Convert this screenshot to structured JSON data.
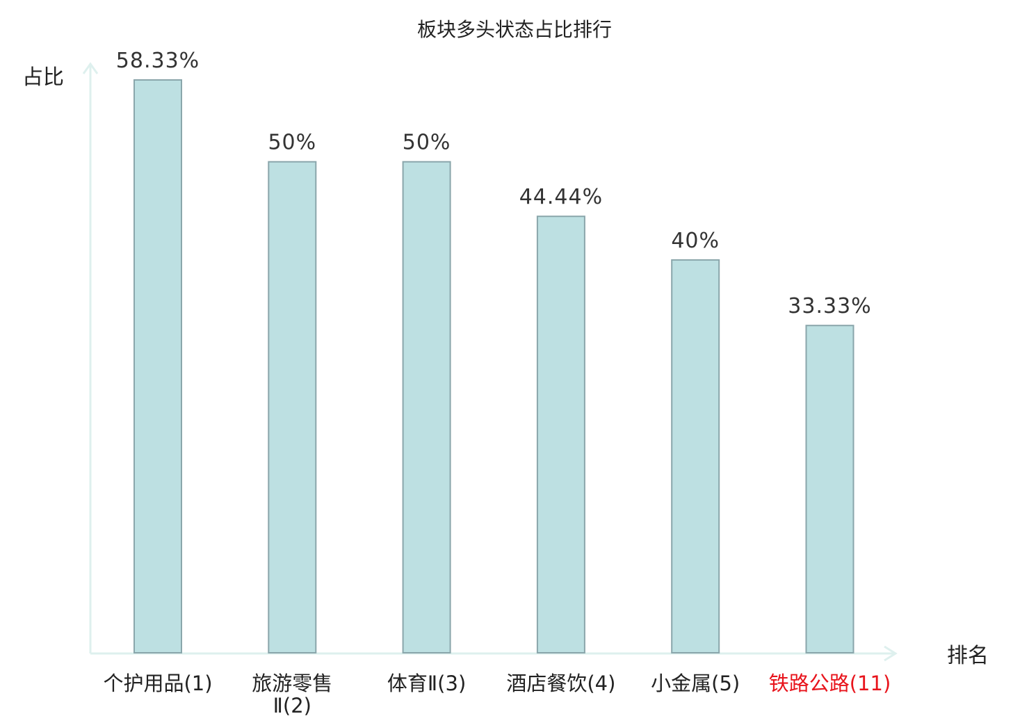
{
  "chart_data": {
    "type": "bar",
    "title": "板块多头状态占比排行",
    "xlabel": "排名",
    "ylabel": "占比",
    "categories": [
      "个护用品(1)",
      "旅游零售Ⅱ(2)",
      "体育Ⅱ(3)",
      "酒店餐饮(4)",
      "小金属(5)",
      "铁路公路(11)"
    ],
    "category_lines": [
      [
        "个护用品(1)"
      ],
      [
        "旅游零售",
        "Ⅱ(2)"
      ],
      [
        "体育Ⅱ(3)"
      ],
      [
        "酒店餐饮(4)"
      ],
      [
        "小金属(5)"
      ],
      [
        "铁路公路(11)"
      ]
    ],
    "values": [
      58.33,
      50,
      50,
      44.44,
      40,
      33.33
    ],
    "value_labels": [
      "58.33%",
      "50%",
      "50%",
      "44.44%",
      "40%",
      "33.33%"
    ],
    "highlight_index": 5,
    "ylim": [
      0,
      58.33
    ],
    "grid": false,
    "legend": "none",
    "colors": {
      "bar_fill": "#bde0e2",
      "bar_stroke": "#8aa6ab",
      "axis": "#def0ee",
      "highlight_text": "#e8141c"
    }
  }
}
